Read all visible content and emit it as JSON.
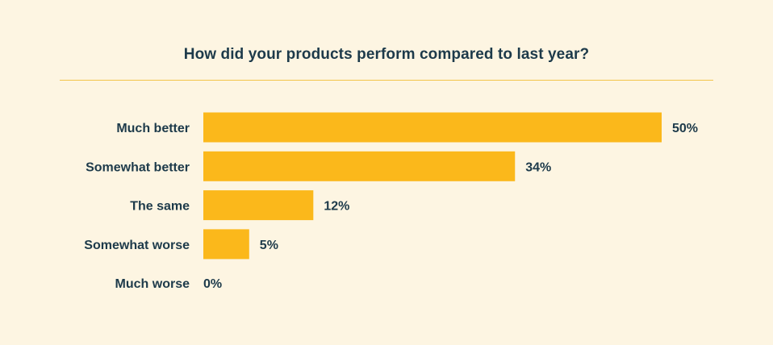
{
  "chart_data": {
    "type": "bar",
    "orientation": "horizontal",
    "title": "How did your products perform compared to last year?",
    "categories": [
      "Much better",
      "Somewhat better",
      "The same",
      "Somewhat worse",
      "Much worse"
    ],
    "values": [
      50,
      34,
      12,
      5,
      0
    ],
    "value_suffix": "%",
    "xlim": [
      0,
      50
    ],
    "xlabel": "",
    "ylabel": "",
    "grid": false,
    "colors": {
      "bar": "#fbb81b",
      "background": "#fdf5e2",
      "text": "#1d3a4a",
      "rule": "#f3c54a"
    }
  }
}
